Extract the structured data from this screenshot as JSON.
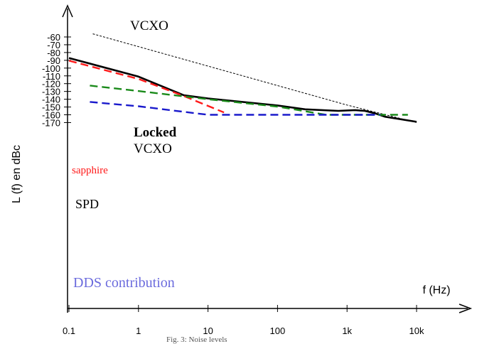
{
  "chart_data": {
    "type": "line",
    "xscale": "log",
    "xlim": [
      0.1,
      10000
    ],
    "ylim": [
      -180,
      -50
    ],
    "grid": false,
    "xlabel": "f (Hz)",
    "ylabel": "L (f) en dBc",
    "x_ticks": [
      "0.1",
      "1",
      "10",
      "100",
      "1k",
      "10k"
    ],
    "y_ticks": [
      "-60",
      "-70",
      "-80",
      "-90",
      "-100",
      "-110",
      "-120",
      "-130",
      "-140",
      "-150",
      "-160",
      "-170"
    ],
    "caption": "Fig. 3: Noise levels",
    "series": [
      {
        "name": "VCXO",
        "color": "#000000",
        "style": "thin-dashed",
        "points": [
          [
            0.22,
            -56
          ],
          [
            1000,
            -147.5
          ],
          [
            10000,
            -170
          ]
        ]
      },
      {
        "name": "Locked VCXO",
        "color": "#000000",
        "style": "solid",
        "points": [
          [
            0.1,
            -87
          ],
          [
            1,
            -111
          ],
          [
            4.5,
            -135
          ],
          [
            10,
            -139
          ],
          [
            100,
            -148
          ],
          [
            250,
            -153
          ],
          [
            750,
            -155
          ],
          [
            1300,
            -154
          ],
          [
            1800,
            -155
          ],
          [
            2500,
            -158
          ],
          [
            3500,
            -162.5
          ],
          [
            10000,
            -169
          ]
        ]
      },
      {
        "name": "sapphire",
        "color": "#ff1a1a",
        "style": "dashed",
        "points": [
          [
            0.1,
            -90.5
          ],
          [
            1,
            -114
          ],
          [
            4.5,
            -136
          ],
          [
            17,
            -157
          ]
        ]
      },
      {
        "name": "SPD",
        "color": "#1a8a1a",
        "style": "dashed",
        "points": [
          [
            0.2,
            -122.5
          ],
          [
            1,
            -129.5
          ],
          [
            10,
            -140
          ],
          [
            100,
            -149.5
          ],
          [
            500,
            -160
          ],
          [
            7500,
            -160
          ]
        ]
      },
      {
        "name": "DDS contribution",
        "color": "#1a1acc",
        "style": "dashed",
        "points": [
          [
            0.2,
            -143.5
          ],
          [
            1,
            -149
          ],
          [
            10,
            -160
          ],
          [
            3000,
            -160
          ]
        ]
      }
    ],
    "annotations": [
      {
        "text": "VCXO",
        "color": "#000000"
      },
      {
        "text": "Locked",
        "color": "#000000"
      },
      {
        "text": "VCXO",
        "color": "#000000"
      },
      {
        "text": "sapphire",
        "color": "#ff1a1a"
      },
      {
        "text": "SPD",
        "color": "#000000"
      },
      {
        "text": "DDS contribution",
        "color": "#6b6bdd"
      }
    ]
  }
}
